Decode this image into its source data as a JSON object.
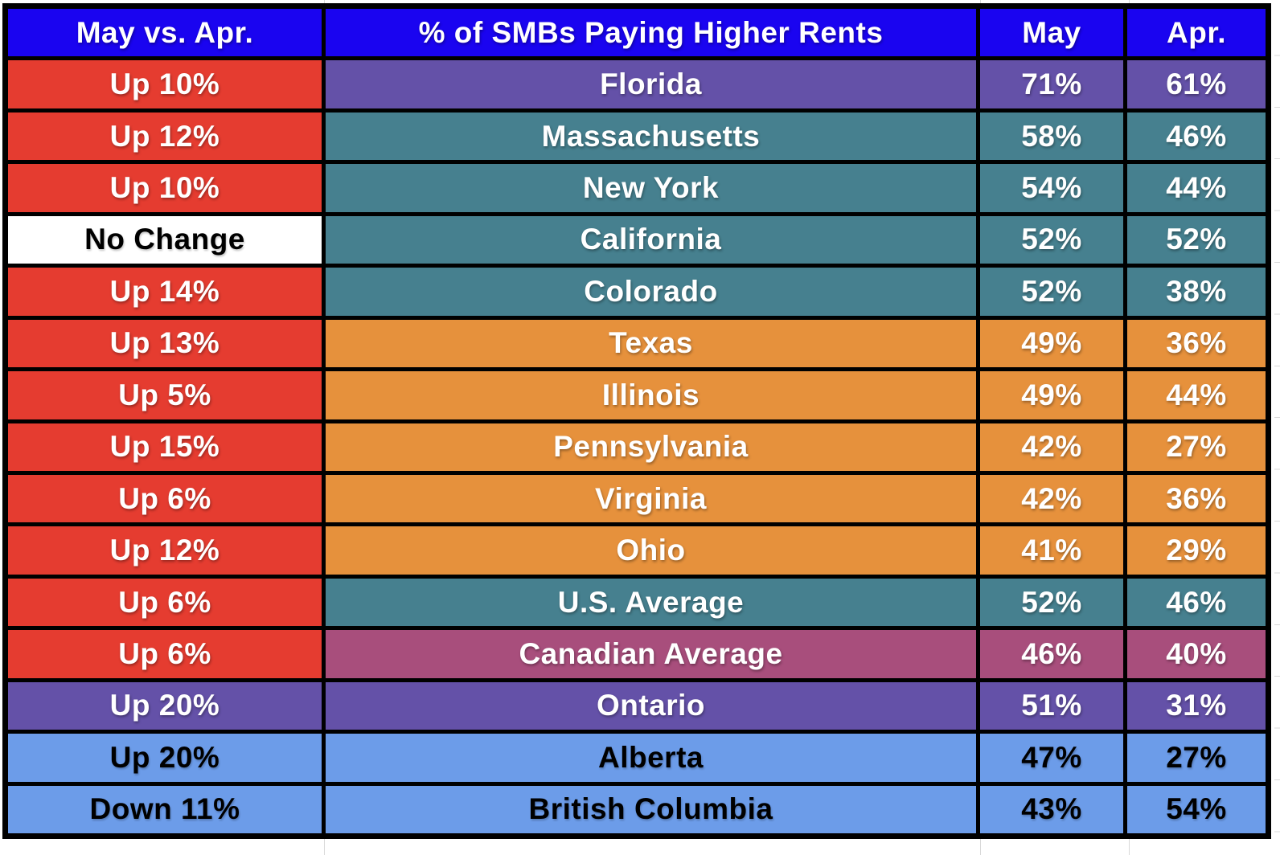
{
  "table": {
    "headers": [
      "May vs. Apr.",
      "% of SMBs Paying Higher Rents",
      "May",
      "Apr."
    ],
    "rows": [
      {
        "change": "Up 10%",
        "change_bg": "red",
        "change_text": "white",
        "name": "Florida",
        "may": "71%",
        "apr": "61%",
        "row_bg": "purple",
        "row_text": "white"
      },
      {
        "change": "Up 12%",
        "change_bg": "red",
        "change_text": "white",
        "name": "Massachusetts",
        "may": "58%",
        "apr": "46%",
        "row_bg": "teal",
        "row_text": "white"
      },
      {
        "change": "Up 10%",
        "change_bg": "red",
        "change_text": "white",
        "name": "New York",
        "may": "54%",
        "apr": "44%",
        "row_bg": "teal",
        "row_text": "white"
      },
      {
        "change": "No Change",
        "change_bg": "white_cell",
        "change_text": "black",
        "name": "California",
        "may": "52%",
        "apr": "52%",
        "row_bg": "teal",
        "row_text": "white"
      },
      {
        "change": "Up 14%",
        "change_bg": "red",
        "change_text": "white",
        "name": "Colorado",
        "may": "52%",
        "apr": "38%",
        "row_bg": "teal",
        "row_text": "white"
      },
      {
        "change": "Up 13%",
        "change_bg": "red",
        "change_text": "white",
        "name": "Texas",
        "may": "49%",
        "apr": "36%",
        "row_bg": "orange",
        "row_text": "white"
      },
      {
        "change": "Up 5%",
        "change_bg": "red",
        "change_text": "white",
        "name": "Illinois",
        "may": "49%",
        "apr": "44%",
        "row_bg": "orange",
        "row_text": "white"
      },
      {
        "change": "Up 15%",
        "change_bg": "red",
        "change_text": "white",
        "name": "Pennsylvania",
        "may": "42%",
        "apr": "27%",
        "row_bg": "orange",
        "row_text": "white"
      },
      {
        "change": "Up 6%",
        "change_bg": "red",
        "change_text": "white",
        "name": "Virginia",
        "may": "42%",
        "apr": "36%",
        "row_bg": "orange",
        "row_text": "white"
      },
      {
        "change": "Up 12%",
        "change_bg": "red",
        "change_text": "white",
        "name": "Ohio",
        "may": "41%",
        "apr": "29%",
        "row_bg": "orange",
        "row_text": "white"
      },
      {
        "change": "Up 6%",
        "change_bg": "red",
        "change_text": "white",
        "name": "U.S. Average",
        "may": "52%",
        "apr": "46%",
        "row_bg": "teal",
        "row_text": "white"
      },
      {
        "change": "Up 6%",
        "change_bg": "red",
        "change_text": "white",
        "name": "Canadian Average",
        "may": "46%",
        "apr": "40%",
        "row_bg": "magenta",
        "row_text": "white"
      },
      {
        "change": "Up 20%",
        "change_bg": "purple",
        "change_text": "white",
        "name": "Ontario",
        "may": "51%",
        "apr": "31%",
        "row_bg": "purple",
        "row_text": "white"
      },
      {
        "change": "Up 20%",
        "change_bg": "light_blue",
        "change_text": "black",
        "name": "Alberta",
        "may": "47%",
        "apr": "27%",
        "row_bg": "light_blue",
        "row_text": "black"
      },
      {
        "change": "Down 11%",
        "change_bg": "light_blue",
        "change_text": "black",
        "name": "British Columbia",
        "may": "43%",
        "apr": "54%",
        "row_bg": "light_blue",
        "row_text": "black"
      }
    ]
  },
  "colors": {
    "header_bg": "#1a04f0",
    "header_text": "#ffffff",
    "red": "#e53c30",
    "purple": "#6451a8",
    "teal": "#46808f",
    "orange": "#e6913c",
    "magenta": "#a84e7c",
    "light_blue": "#6c9ce9",
    "white_cell": "#ffffff",
    "border_black": "#000000",
    "margin_gridline": "#d9d9d9"
  },
  "chart_data": {
    "type": "table",
    "title": "% of SMBs Paying Higher Rents",
    "columns": [
      "May vs. Apr.",
      "% of SMBs Paying Higher Rents",
      "May",
      "Apr."
    ],
    "rows": [
      [
        "Up 10%",
        "Florida",
        "71%",
        "61%"
      ],
      [
        "Up 12%",
        "Massachusetts",
        "58%",
        "46%"
      ],
      [
        "Up 10%",
        "New York",
        "54%",
        "44%"
      ],
      [
        "No Change",
        "California",
        "52%",
        "52%"
      ],
      [
        "Up 14%",
        "Colorado",
        "52%",
        "38%"
      ],
      [
        "Up 13%",
        "Texas",
        "49%",
        "36%"
      ],
      [
        "Up 5%",
        "Illinois",
        "49%",
        "44%"
      ],
      [
        "Up 15%",
        "Pennsylvania",
        "42%",
        "27%"
      ],
      [
        "Up 6%",
        "Virginia",
        "42%",
        "36%"
      ],
      [
        "Up 12%",
        "Ohio",
        "41%",
        "29%"
      ],
      [
        "Up 6%",
        "U.S. Average",
        "52%",
        "46%"
      ],
      [
        "Up 6%",
        "Canadian Average",
        "46%",
        "40%"
      ],
      [
        "Up 20%",
        "Ontario",
        "51%",
        "31%"
      ],
      [
        "Up 20%",
        "Alberta",
        "47%",
        "27%"
      ],
      [
        "Down 11%",
        "British Columbia",
        "43%",
        "54%"
      ]
    ]
  }
}
